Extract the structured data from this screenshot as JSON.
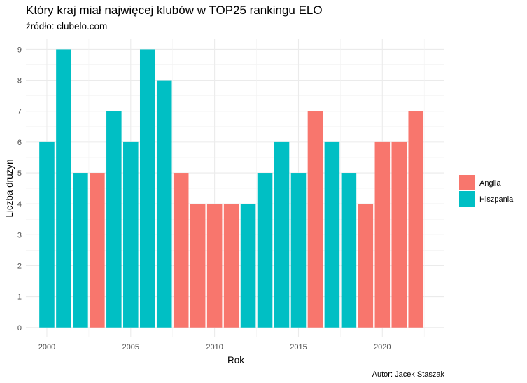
{
  "chart_data": {
    "type": "bar",
    "title": "Który kraj miał najwięcej klubów w TOP25 rankingu ELO",
    "subtitle": "źródło: clubelo.com",
    "caption": "Autor: Jacek Staszak",
    "xlabel": "Rok",
    "ylabel": "Liczba drużyn",
    "x_ticks": [
      2000,
      2005,
      2010,
      2015,
      2020
    ],
    "y_ticks": [
      0,
      1,
      2,
      3,
      4,
      5,
      6,
      7,
      8,
      9
    ],
    "xlim": [
      1998.75,
      2023.7
    ],
    "ylim": [
      -0.3,
      9.35
    ],
    "grid": true,
    "legend_position": "right",
    "legend": [
      {
        "label": "Anglia",
        "color": "#F8766D"
      },
      {
        "label": "Hiszpania",
        "color": "#00BFC4"
      }
    ],
    "bars": [
      {
        "year": 2000,
        "value": 6,
        "country": "Hiszpania"
      },
      {
        "year": 2001,
        "value": 9,
        "country": "Hiszpania"
      },
      {
        "year": 2002,
        "value": 5,
        "country": "Hiszpania"
      },
      {
        "year": 2003,
        "value": 5,
        "country": "Anglia"
      },
      {
        "year": 2004,
        "value": 7,
        "country": "Hiszpania"
      },
      {
        "year": 2005,
        "value": 6,
        "country": "Hiszpania"
      },
      {
        "year": 2006,
        "value": 9,
        "country": "Hiszpania"
      },
      {
        "year": 2007,
        "value": 8,
        "country": "Hiszpania"
      },
      {
        "year": 2008,
        "value": 5,
        "country": "Anglia"
      },
      {
        "year": 2009,
        "value": 4,
        "country": "Anglia"
      },
      {
        "year": 2010,
        "value": 4,
        "country": "Anglia"
      },
      {
        "year": 2011,
        "value": 4,
        "country": "Anglia"
      },
      {
        "year": 2012,
        "value": 4,
        "country": "Hiszpania"
      },
      {
        "year": 2013,
        "value": 5,
        "country": "Hiszpania"
      },
      {
        "year": 2014,
        "value": 6,
        "country": "Hiszpania"
      },
      {
        "year": 2015,
        "value": 5,
        "country": "Hiszpania"
      },
      {
        "year": 2016,
        "value": 7,
        "country": "Anglia"
      },
      {
        "year": 2017,
        "value": 6,
        "country": "Hiszpania"
      },
      {
        "year": 2018,
        "value": 5,
        "country": "Hiszpania"
      },
      {
        "year": 2019,
        "value": 4,
        "country": "Anglia"
      },
      {
        "year": 2020,
        "value": 6,
        "country": "Anglia"
      },
      {
        "year": 2021,
        "value": 6,
        "country": "Anglia"
      },
      {
        "year": 2022,
        "value": 7,
        "country": "Anglia"
      }
    ]
  }
}
